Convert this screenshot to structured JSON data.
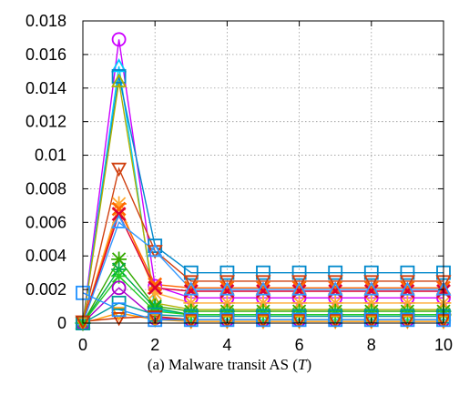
{
  "caption": {
    "text": "(a) Malware transit AS (",
    "variable": "T",
    "close": ")"
  },
  "chart_data": {
    "type": "line",
    "xlim": [
      0,
      10
    ],
    "ylim": [
      0,
      0.018
    ],
    "x_ticks": [
      0,
      2,
      4,
      6,
      8,
      10
    ],
    "y_ticks": [
      0,
      0.002,
      0.004,
      0.006,
      0.008,
      0.01,
      0.012,
      0.014,
      0.016,
      0.018
    ],
    "x_tick_labels": [
      "0",
      "2",
      "4",
      "6",
      "8",
      "10"
    ],
    "y_tick_labels": [
      "0",
      "0.002",
      "0.004",
      "0.006",
      "0.008",
      "0.01",
      "0.012",
      "0.014",
      "0.016",
      "0.018"
    ],
    "grid": true,
    "legend": "none",
    "x": [
      0,
      1,
      2,
      3,
      4,
      5,
      6,
      7,
      8,
      9,
      10
    ],
    "series": [
      {
        "color": "#cc00ff",
        "marker": "circle",
        "values": [
          0,
          0.0169,
          0.0022,
          0.0015,
          0.0015,
          0.0015,
          0.0015,
          0.0015,
          0.0015,
          0.0015,
          0.0015
        ]
      },
      {
        "color": "#00ccff",
        "marker": "triangle",
        "values": [
          0,
          0.0153,
          0.0008,
          0.0005,
          0.0005,
          0.0005,
          0.0005,
          0.0005,
          0.0005,
          0.0005,
          0.0005
        ]
      },
      {
        "color": "#0088cc",
        "marker": "square",
        "values": [
          0,
          0.0147,
          0.0046,
          0.003,
          0.003,
          0.003,
          0.003,
          0.003,
          0.003,
          0.003,
          0.003
        ]
      },
      {
        "color": "#b0b000",
        "marker": "triangle",
        "values": [
          0,
          0.0144,
          0.0012,
          0.0008,
          0.0008,
          0.0008,
          0.0008,
          0.0008,
          0.0008,
          0.0008,
          0.0008
        ]
      },
      {
        "color": "#d04010",
        "marker": "triangle-down",
        "values": [
          0,
          0.0092,
          0.0043,
          0.0025,
          0.0025,
          0.0025,
          0.0025,
          0.0025,
          0.0025,
          0.0025,
          0.0025
        ]
      },
      {
        "color": "#ffaa33",
        "marker": "asterisk",
        "values": [
          0,
          0.0071,
          0.0018,
          0.0012,
          0.0012,
          0.0012,
          0.0012,
          0.0012,
          0.0012,
          0.0012,
          0.0012
        ]
      },
      {
        "color": "#ff6600",
        "marker": "x",
        "values": [
          0,
          0.0068,
          0.0023,
          0.0021,
          0.0021,
          0.0021,
          0.0021,
          0.0021,
          0.0021,
          0.0021,
          0.0021
        ]
      },
      {
        "color": "#dd0033",
        "marker": "x",
        "values": [
          0,
          0.0065,
          0.0021,
          0.0019,
          0.0019,
          0.0019,
          0.0019,
          0.0019,
          0.0019,
          0.0019,
          0.0019
        ]
      },
      {
        "color": "#3399ff",
        "marker": "triangle",
        "values": [
          0,
          0.006,
          0.0043,
          0.002,
          0.002,
          0.002,
          0.002,
          0.002,
          0.002,
          0.002,
          0.002
        ]
      },
      {
        "color": "#33aa00",
        "marker": "asterisk",
        "values": [
          0,
          0.0038,
          0.001,
          0.0007,
          0.0007,
          0.0007,
          0.0007,
          0.0007,
          0.0007,
          0.0007,
          0.0007
        ]
      },
      {
        "color": "#00aa44",
        "marker": "asterisk",
        "values": [
          0,
          0.0032,
          0.0009,
          0.0005,
          0.0005,
          0.0005,
          0.0005,
          0.0005,
          0.0005,
          0.0005,
          0.0005
        ]
      },
      {
        "color": "#22cc22",
        "marker": "asterisk",
        "values": [
          0,
          0.0028,
          0.0007,
          0.0005,
          0.0005,
          0.0005,
          0.0005,
          0.0005,
          0.0005,
          0.0005,
          0.0005
        ]
      },
      {
        "color": "#aa00cc",
        "marker": "circle",
        "values": [
          0,
          0.0021,
          0.0003,
          0.0002,
          0.0002,
          0.0002,
          0.0002,
          0.0002,
          0.0002,
          0.0002,
          0.0002
        ]
      },
      {
        "color": "#ff9900",
        "marker": "triangle-down",
        "values": [
          0,
          0.0006,
          0.0002,
          0.0001,
          0.0001,
          0.0001,
          0.0001,
          0.0001,
          0.0001,
          0.0001,
          0.0001
        ]
      },
      {
        "color": "#009999",
        "marker": "square",
        "values": [
          0,
          0.0012,
          0.0005,
          0.0004,
          0.0004,
          0.0004,
          0.0004,
          0.0004,
          0.0004,
          0.0004,
          0.0004
        ]
      },
      {
        "color": "#cc3300",
        "marker": "triangle-down",
        "values": [
          0.0001,
          0.0003,
          0.0004,
          0.0002,
          0.0002,
          0.0002,
          0.0002,
          0.0002,
          0.0002,
          0.0002,
          0.0002
        ]
      },
      {
        "color": "#1e90ff",
        "marker": "square",
        "values": [
          0.0018,
          0.0008,
          0.0002,
          0.0002,
          0.0002,
          0.0002,
          0.0002,
          0.0002,
          0.0002,
          0.0002,
          0.0002
        ]
      }
    ]
  }
}
